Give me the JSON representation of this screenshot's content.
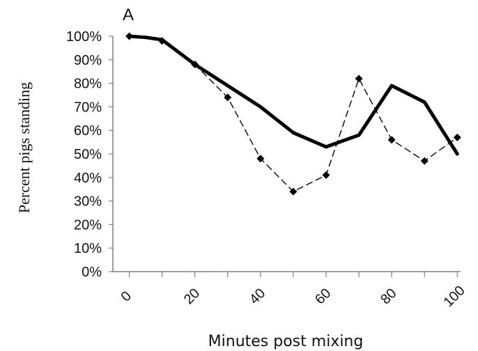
{
  "chart_data": {
    "type": "line",
    "panel_label": "A",
    "title": "",
    "xlabel": "Minutes post mixing",
    "ylabel": "Percent pigs standing",
    "xlim": [
      -5,
      101
    ],
    "ylim": [
      0,
      100
    ],
    "x_ticks": [
      0,
      20,
      40,
      60,
      80,
      100
    ],
    "y_ticks": [
      0,
      10,
      20,
      30,
      40,
      50,
      60,
      70,
      80,
      90,
      100
    ],
    "y_tick_labels": [
      "0%",
      "10%",
      "20%",
      "30%",
      "40%",
      "50%",
      "60%",
      "70%",
      "80%",
      "90%",
      "100%"
    ],
    "grid": false,
    "legend": "none",
    "series": [
      {
        "style": "solid-thick",
        "color": "#000000",
        "markers": false,
        "x": [
          0,
          5,
          10,
          20,
          30,
          40,
          50,
          60,
          70,
          80,
          90,
          100
        ],
        "y": [
          100,
          99.5,
          98.5,
          88,
          79,
          70,
          59,
          53,
          58,
          79,
          72,
          50
        ]
      },
      {
        "style": "dashed",
        "color": "#000000",
        "markers": true,
        "x": [
          0,
          10,
          20,
          30,
          40,
          50,
          60,
          70,
          80,
          90,
          100
        ],
        "y": [
          100,
          98,
          88,
          74,
          48,
          34,
          41,
          82,
          56,
          47,
          57
        ]
      }
    ]
  }
}
